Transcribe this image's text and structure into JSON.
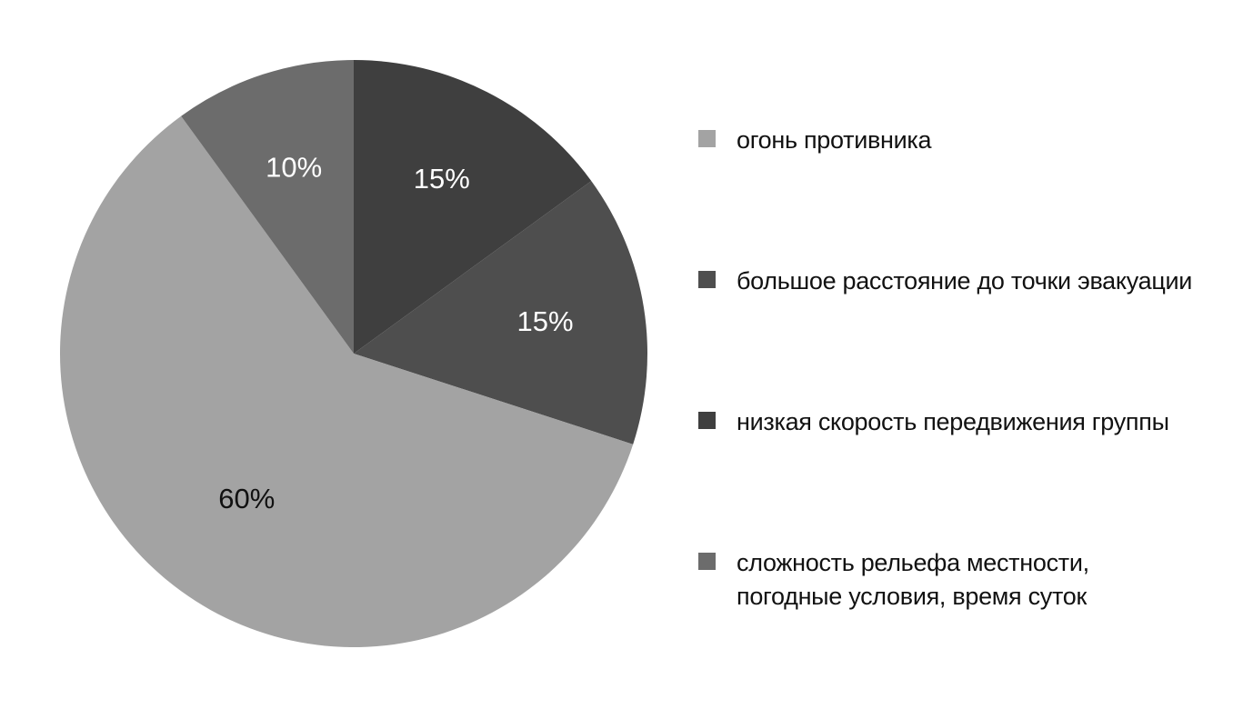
{
  "chart_data": {
    "type": "pie",
    "start_angle_deg": 0,
    "direction": "clockwise",
    "slices": [
      {
        "label": "низкая скорость передвижения группы",
        "value": 15,
        "display": "15%",
        "color": "#3f3f3f",
        "text_color": "#ffffff"
      },
      {
        "label": "большое расстояние до точки эвакуации",
        "value": 15,
        "display": "15%",
        "color": "#4e4e4e",
        "text_color": "#ffffff"
      },
      {
        "label": "огонь противника",
        "value": 60,
        "display": "60%",
        "color": "#a3a3a3",
        "text_color": "#111111"
      },
      {
        "label": "сложность рельефа местности,\nпогодные условия, время суток",
        "value": 10,
        "display": "10%",
        "color": "#6c6c6c",
        "text_color": "#ffffff"
      }
    ],
    "legend": {
      "placement": "right",
      "entries": [
        {
          "label": "огонь противника",
          "color": "#a3a3a3"
        },
        {
          "label": "большое расстояние до точки эвакуации",
          "color": "#4e4e4e"
        },
        {
          "label": "низкая скорость передвижения группы",
          "color": "#3f3f3f"
        },
        {
          "label": "сложность рельефа местности,\nпогодные условия, время суток",
          "color": "#6c6c6c"
        }
      ]
    }
  }
}
